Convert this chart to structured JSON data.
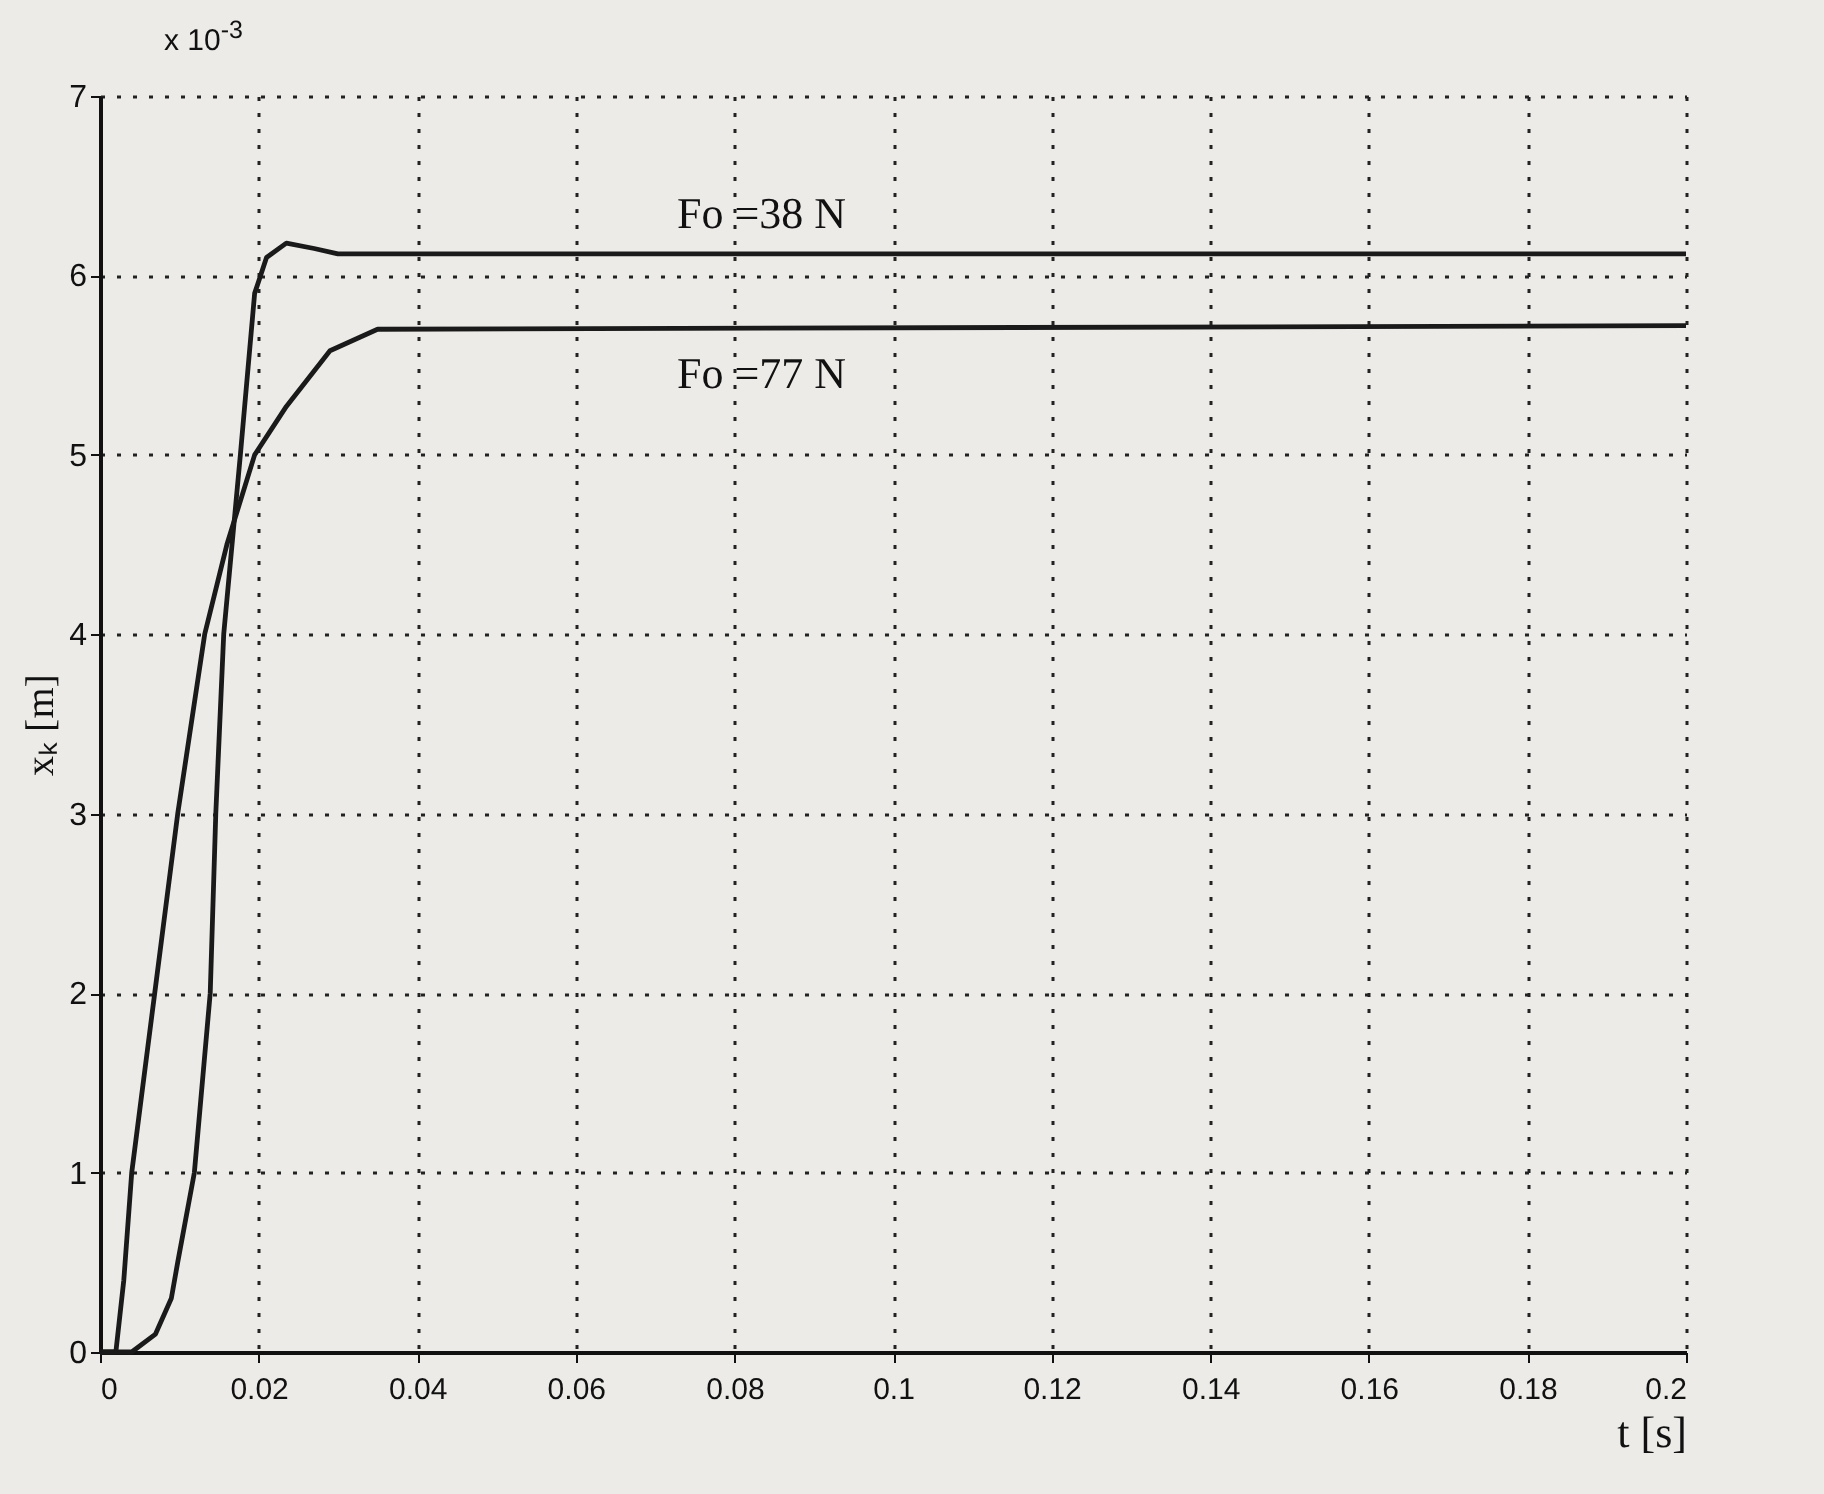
{
  "chart_data": {
    "type": "line",
    "xlabel": "t [s]",
    "ylabel": "xₖ [m]",
    "annotations": [
      "x 10$^{-3}$"
    ],
    "xlim": [
      0,
      0.2
    ],
    "xticks": [
      0,
      0.02,
      0.04,
      0.06,
      0.08,
      0.1,
      0.12,
      0.14,
      0.16,
      0.18,
      0.2
    ],
    "ylim": [
      0,
      7
    ],
    "yticks": [
      0,
      1,
      2,
      3,
      4,
      5,
      6,
      7
    ],
    "grid": true,
    "legend": false,
    "line_style": "solid",
    "marker": "none",
    "series": [
      {
        "name": "Fo =38 N",
        "color": "#1a1a1a",
        "x": [
          0,
          0.004,
          0.007,
          0.009,
          0.0098,
          0.0119,
          0.0139,
          0.0146,
          0.0156,
          0.0177,
          0.0195,
          0.021,
          0.0235,
          0.027,
          0.03,
          0.2
        ],
        "values": [
          0,
          0,
          0.1,
          0.3,
          0.5,
          1,
          2,
          3,
          4,
          5,
          5.9,
          6.1,
          6.18,
          6.15,
          6.12,
          6.12
        ]
      },
      {
        "name": "Fo =77 N",
        "color": "#1a1a1a",
        "x": [
          0,
          0.002,
          0.003,
          0.004,
          0.0069,
          0.0098,
          0.0132,
          0.016,
          0.0195,
          0.0235,
          0.029,
          0.035,
          0.2
        ],
        "values": [
          0,
          0,
          0.4,
          1,
          2,
          3,
          4,
          4.5,
          5,
          5.27,
          5.58,
          5.7,
          5.72
        ]
      }
    ]
  }
}
